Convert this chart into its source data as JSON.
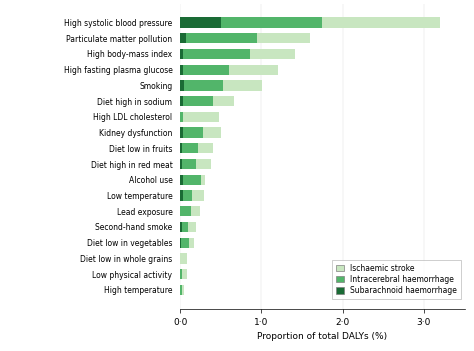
{
  "categories": [
    "High systolic blood pressure",
    "Particulate matter pollution",
    "High body-mass index",
    "High fasting plasma glucose",
    "Smoking",
    "Diet high in sodium",
    "High LDL cholesterol",
    "Kidney dysfunction",
    "Diet low in fruits",
    "Diet high in red meat",
    "Alcohol use",
    "Low temperature",
    "Lead exposure",
    "Second-hand smoke",
    "Diet low in vegetables",
    "Diet low in whole grains",
    "Low physical activity",
    "High temperature"
  ],
  "ischaemic": [
    1.45,
    0.65,
    0.55,
    0.6,
    0.48,
    0.25,
    0.45,
    0.22,
    0.18,
    0.18,
    0.05,
    0.15,
    0.12,
    0.09,
    0.06,
    0.09,
    0.07,
    0.03
  ],
  "intracerebral": [
    1.25,
    0.88,
    0.82,
    0.56,
    0.48,
    0.38,
    0.03,
    0.25,
    0.2,
    0.18,
    0.22,
    0.12,
    0.13,
    0.08,
    0.1,
    0.0,
    0.02,
    0.02
  ],
  "subarachnoid": [
    0.5,
    0.07,
    0.04,
    0.04,
    0.05,
    0.03,
    0.0,
    0.03,
    0.02,
    0.02,
    0.04,
    0.03,
    0.0,
    0.02,
    0.01,
    0.0,
    0.0,
    0.0
  ],
  "color_ischaemic": "#c8e6c0",
  "color_intracerebral": "#52b56a",
  "color_subarachnoid": "#1a6b35",
  "xlabel": "Proportion of total DALYs (%)",
  "legend_labels": [
    "Ischaemic stroke",
    "Intracerebral haemorrhage",
    "Subarachnoid haemorrhage"
  ],
  "xlim": [
    0,
    3.5
  ],
  "xticks": [
    0.0,
    1.0,
    2.0,
    3.0
  ],
  "xticklabels": [
    "0·0",
    "1·0",
    "2·0",
    "3·0"
  ],
  "background_color": "#ffffff"
}
